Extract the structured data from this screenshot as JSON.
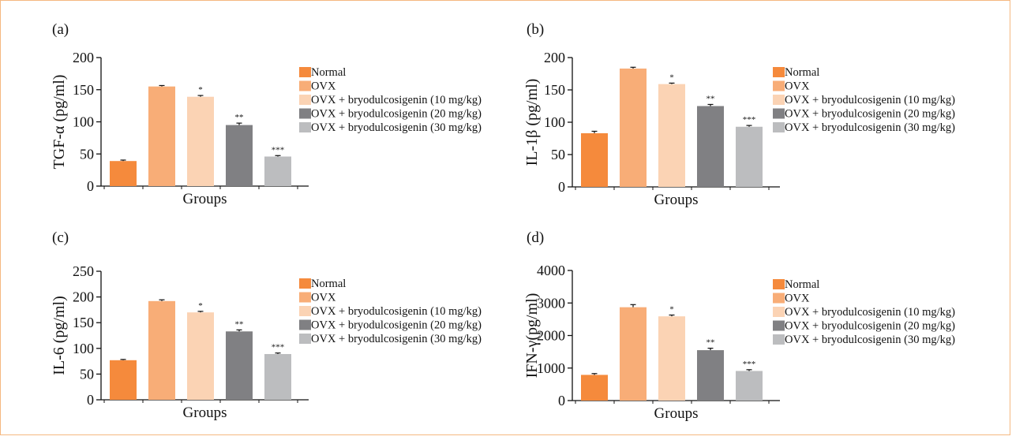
{
  "groups_legend": [
    {
      "label": "Normal",
      "color": "#f58a3c"
    },
    {
      "label": "OVX",
      "color": "#f8ad77"
    },
    {
      "label": "OVX + bryodulcosigenin (10 mg/kg)",
      "color": "#fbd3b4"
    },
    {
      "label": "OVX + bryodulcosigenin (20 mg/kg)",
      "color": "#808083"
    },
    {
      "label": "OVX + bryodulcosigenin (30 mg/kg)",
      "color": "#bcbdbf"
    }
  ],
  "chart_data": [
    {
      "panel": "(a)",
      "type": "bar",
      "ylabel": "TGF-α (pg/ml)",
      "xlabel": "Groups",
      "ylim": [
        0,
        200
      ],
      "yticks": [
        0,
        50,
        100,
        150,
        200
      ],
      "categories": [
        "Normal",
        "OVX",
        "OVX + bryodulcosigenin (10 mg/kg)",
        "OVX + bryodulcosigenin (20 mg/kg)",
        "OVX + bryodulcosigenin (30 mg/kg)"
      ],
      "values": [
        39,
        155,
        139,
        95,
        46
      ],
      "errors": [
        1.5,
        1.5,
        2,
        3,
        1.5
      ],
      "significance": [
        "",
        "",
        "*",
        "**",
        "***"
      ]
    },
    {
      "panel": "(b)",
      "type": "bar",
      "ylabel": "IL-1β (pg/ml)",
      "xlabel": "Groups",
      "ylim": [
        0,
        200
      ],
      "yticks": [
        0,
        50,
        100,
        150,
        200
      ],
      "categories": [
        "Normal",
        "OVX",
        "OVX + bryodulcosigenin (10 mg/kg)",
        "OVX + bryodulcosigenin (20 mg/kg)",
        "OVX + bryodulcosigenin (30 mg/kg)"
      ],
      "values": [
        83,
        183,
        159,
        125,
        93
      ],
      "errors": [
        3,
        2,
        1.5,
        2.5,
        2
      ],
      "significance": [
        "",
        "",
        "*",
        "**",
        "***"
      ]
    },
    {
      "panel": "(c)",
      "type": "bar",
      "ylabel": "IL-6 (pg/ml)",
      "xlabel": "Groups",
      "ylim": [
        0,
        250
      ],
      "yticks": [
        0,
        50,
        100,
        150,
        200,
        250
      ],
      "categories": [
        "Normal",
        "OVX",
        "OVX + bryodulcosigenin (10 mg/kg)",
        "OVX + bryodulcosigenin (20 mg/kg)",
        "OVX + bryodulcosigenin (30 mg/kg)"
      ],
      "values": [
        77,
        192,
        170,
        133,
        89
      ],
      "errors": [
        1.5,
        2.5,
        2,
        3,
        2
      ],
      "significance": [
        "",
        "",
        "*",
        "**",
        "***"
      ]
    },
    {
      "panel": "(d)",
      "type": "bar",
      "ylabel": "IFN-γ(pg/ml)",
      "xlabel": "Groups",
      "ylim": [
        0,
        4000
      ],
      "yticks": [
        0,
        1000,
        2000,
        3000,
        4000
      ],
      "categories": [
        "Normal",
        "OVX",
        "OVX + bryodulcosigenin (10 mg/kg)",
        "OVX + bryodulcosigenin (20 mg/kg)",
        "OVX + bryodulcosigenin (30 mg/kg)"
      ],
      "values": [
        790,
        2870,
        2590,
        1550,
        910
      ],
      "errors": [
        40,
        80,
        40,
        60,
        40
      ],
      "significance": [
        "",
        "",
        "*",
        "**",
        "***"
      ]
    }
  ]
}
